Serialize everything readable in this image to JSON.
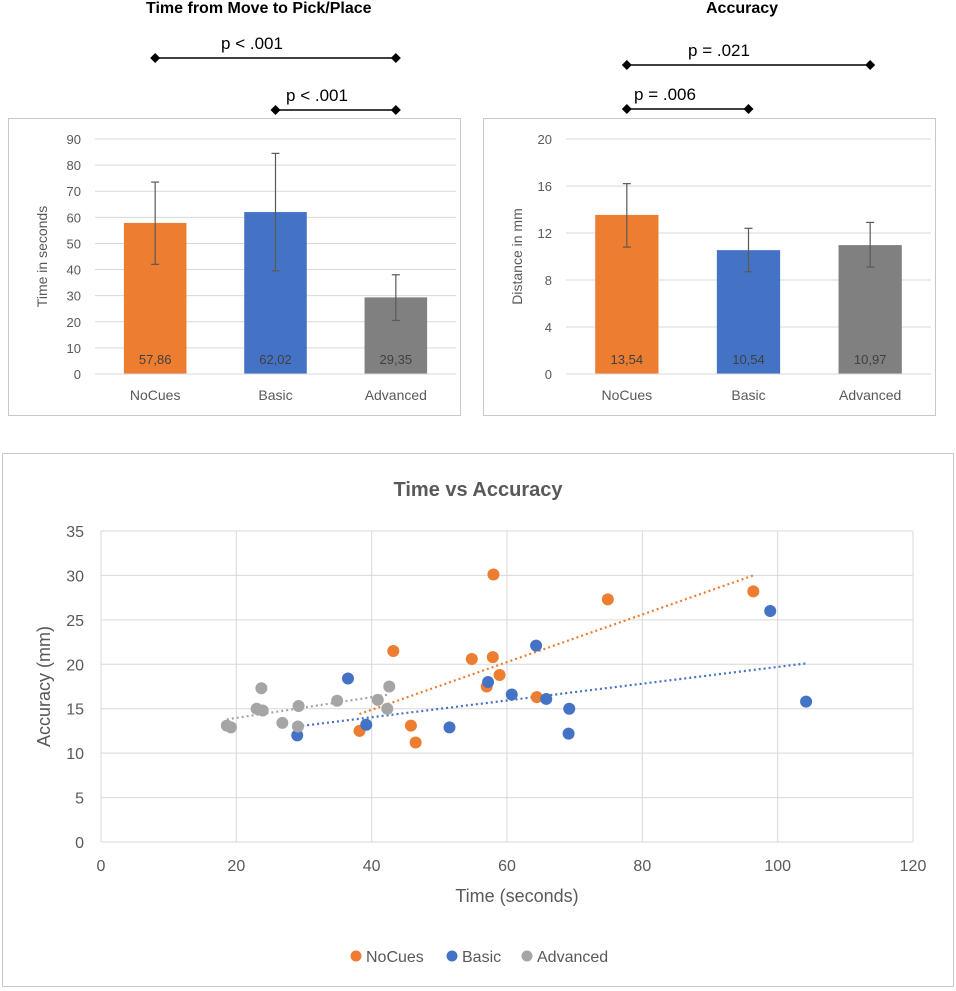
{
  "chart_data": [
    {
      "type": "bar",
      "title": "Time from Move to Pick/Place",
      "ylabel": "Time in seconds",
      "categories": [
        "NoCues",
        "Basic",
        "Advanced"
      ],
      "values": [
        57.86,
        62.02,
        29.35
      ],
      "value_labels": [
        "57,86",
        "62,02",
        "29,35"
      ],
      "error_low": [
        42,
        39.5,
        20.5
      ],
      "error_high": [
        73.5,
        84.5,
        38
      ],
      "ylim": [
        0,
        90
      ],
      "yticks": [
        0,
        10,
        20,
        30,
        40,
        50,
        60,
        70,
        80,
        90
      ],
      "grid": true,
      "colors": [
        "#ed7d31",
        "#4472c4",
        "#808080"
      ],
      "significance": [
        {
          "label": "p < .001",
          "from": "NoCues",
          "to": "Advanced"
        },
        {
          "label": "p < .001",
          "from": "Basic",
          "to": "Advanced"
        }
      ]
    },
    {
      "type": "bar",
      "title": "Accuracy",
      "ylabel": "Distance in mm",
      "categories": [
        "NoCues",
        "Basic",
        "Advanced"
      ],
      "values": [
        13.54,
        10.54,
        10.97
      ],
      "value_labels": [
        "13,54",
        "10,54",
        "10,97"
      ],
      "error_low": [
        10.8,
        8.7,
        9.1
      ],
      "error_high": [
        16.2,
        12.4,
        12.9
      ],
      "ylim": [
        0,
        20
      ],
      "yticks": [
        0,
        4,
        8,
        12,
        16,
        20
      ],
      "grid": true,
      "colors": [
        "#ed7d31",
        "#4472c4",
        "#808080"
      ],
      "significance": [
        {
          "label": "p = .021",
          "from": "NoCues",
          "to": "Advanced"
        },
        {
          "label": "p = .006",
          "from": "NoCues",
          "to": "Basic"
        }
      ]
    },
    {
      "type": "scatter",
      "title": "Time vs Accuracy",
      "xlabel": "Time (seconds)",
      "ylabel": "Accuracy (mm)",
      "xlim": [
        0,
        120
      ],
      "ylim": [
        0,
        35
      ],
      "xticks": [
        0,
        20,
        40,
        60,
        80,
        100,
        120
      ],
      "yticks": [
        0,
        5,
        10,
        15,
        20,
        25,
        30,
        35
      ],
      "grid": true,
      "legend_position": "bottom",
      "series": [
        {
          "name": "NoCues",
          "color": "#ed7d31",
          "points": [
            [
              38.2,
              12.5
            ],
            [
              43.2,
              21.5
            ],
            [
              45.8,
              13.1
            ],
            [
              46.5,
              11.2
            ],
            [
              54.8,
              20.6
            ],
            [
              57,
              17.5
            ],
            [
              58,
              30.1
            ],
            [
              57.9,
              20.8
            ],
            [
              58.9,
              18.8
            ],
            [
              64.4,
              16.3
            ],
            [
              74.9,
              27.3
            ],
            [
              96.4,
              28.2
            ]
          ],
          "trendline": [
            [
              38.2,
              14.4
            ],
            [
              96.4,
              30
            ]
          ]
        },
        {
          "name": "Basic",
          "color": "#4472c4",
          "points": [
            [
              29,
              12
            ],
            [
              36.5,
              18.4
            ],
            [
              39.2,
              13.2
            ],
            [
              51.5,
              12.9
            ],
            [
              57.2,
              18
            ],
            [
              60.7,
              16.6
            ],
            [
              64.3,
              22.1
            ],
            [
              65.8,
              16.1
            ],
            [
              69.1,
              12.2
            ],
            [
              69.2,
              15
            ],
            [
              98.9,
              26
            ],
            [
              104.2,
              15.8
            ]
          ],
          "trendline": [
            [
              29,
              13
            ],
            [
              104.2,
              20.1
            ]
          ]
        },
        {
          "name": "Advanced",
          "color": "#a5a5a5",
          "points": [
            [
              18.6,
              13.1
            ],
            [
              19.2,
              12.9
            ],
            [
              23,
              15
            ],
            [
              23.7,
              17.3
            ],
            [
              23.9,
              14.8
            ],
            [
              26.8,
              13.4
            ],
            [
              29.2,
              15.3
            ],
            [
              29.1,
              13
            ],
            [
              34.9,
              15.9
            ],
            [
              40.9,
              16
            ],
            [
              42.3,
              15
            ],
            [
              42.6,
              17.5
            ]
          ],
          "trendline": [
            [
              18.6,
              13.8
            ],
            [
              42.6,
              16.6
            ]
          ]
        }
      ]
    }
  ]
}
